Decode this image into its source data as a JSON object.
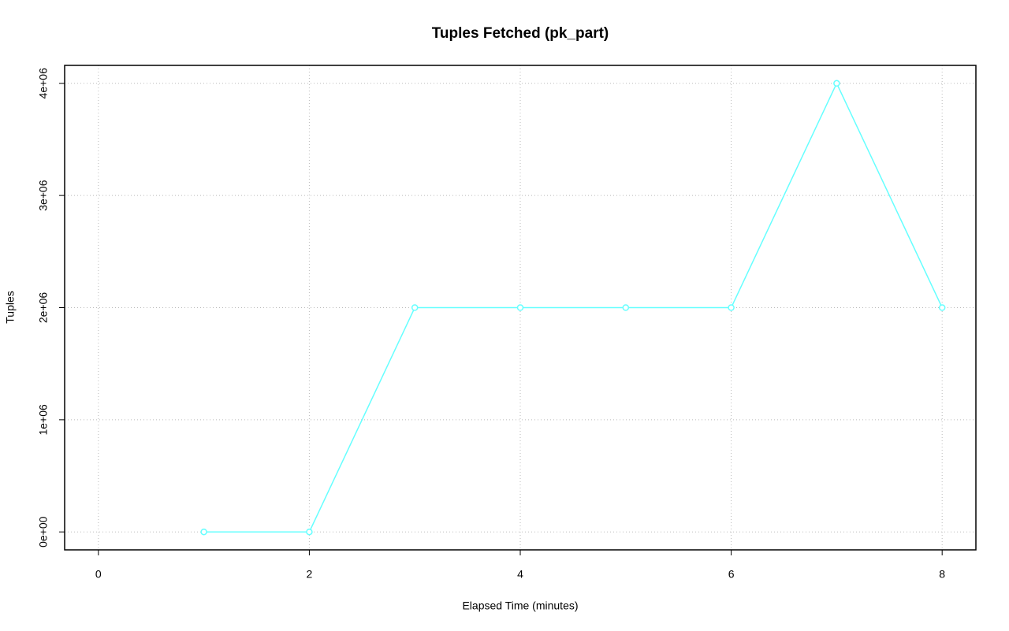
{
  "chart_data": {
    "type": "line",
    "title": "Tuples Fetched (pk_part)",
    "x_label": "Elapsed Time (minutes)",
    "y_label": "Tuples",
    "x": [
      1,
      2,
      3,
      4,
      5,
      6,
      7,
      8
    ],
    "series": [
      {
        "name": "Tuples",
        "color": "#66ffff",
        "values": [
          0,
          0,
          2000000,
          2000000,
          2000000,
          2000000,
          4000000,
          2000000
        ]
      }
    ],
    "xlim": [
      -0.32,
      8.32
    ],
    "xticks": [
      0,
      2,
      4,
      6,
      8
    ],
    "ylim": [
      -160000,
      4160000
    ],
    "yticks": [
      {
        "value": 0,
        "label": "0e+00"
      },
      {
        "value": 1000000,
        "label": "1e+06"
      },
      {
        "value": 2000000,
        "label": "2e+06"
      },
      {
        "value": 3000000,
        "label": "3e+06"
      },
      {
        "value": 4000000,
        "label": "4e+06"
      }
    ],
    "grid": true
  }
}
